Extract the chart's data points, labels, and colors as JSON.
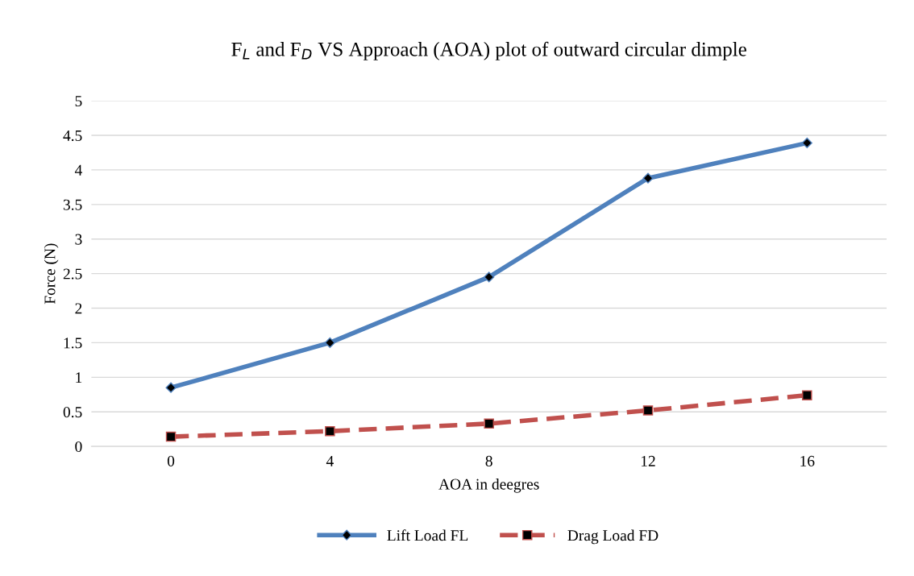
{
  "chart_data": {
    "type": "line",
    "title": "F$_{L}$ and F$_{D}$ VS Approach (AOA) plot of outward circular dimple",
    "xlabel": "AOA in deegres",
    "ylabel": "Force (N)",
    "categories": [
      "0",
      "4",
      "8",
      "12",
      "16"
    ],
    "series": [
      {
        "name": "Lift Load FL",
        "color": "#4f81bd",
        "values": [
          0.85,
          1.5,
          2.45,
          3.88,
          4.39
        ],
        "marker": "diamond",
        "line_style": "solid"
      },
      {
        "name": "Drag Load FD",
        "color": "#c0504d",
        "values": [
          0.14,
          0.22,
          0.33,
          0.52,
          0.74
        ],
        "marker": "square",
        "line_style": "dashed"
      }
    ],
    "ylim": [
      0,
      5
    ],
    "yticks": [
      0,
      0.5,
      1,
      1.5,
      2,
      2.5,
      3,
      3.5,
      4,
      4.5,
      5
    ],
    "grid": "y",
    "legend": "bottom"
  }
}
